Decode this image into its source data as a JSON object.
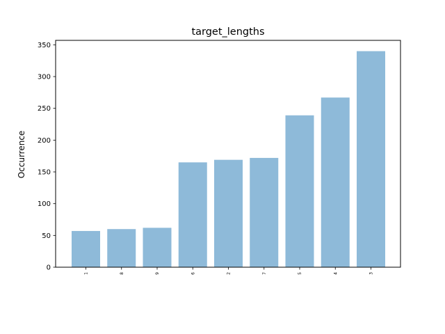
{
  "chart_data": {
    "type": "bar",
    "title": "target_lengths",
    "xlabel": "",
    "ylabel": "Occurrence",
    "categories": [
      "1",
      "8",
      "9",
      "6",
      "2",
      "7",
      "5",
      "4",
      "3"
    ],
    "values": [
      57,
      60,
      62,
      165,
      169,
      172,
      239,
      267,
      340
    ],
    "ylim": [
      0,
      357
    ],
    "yticks": [
      0,
      50,
      100,
      150,
      200,
      250,
      300,
      350
    ],
    "grid": false,
    "bar_color": "#8ebad9"
  }
}
